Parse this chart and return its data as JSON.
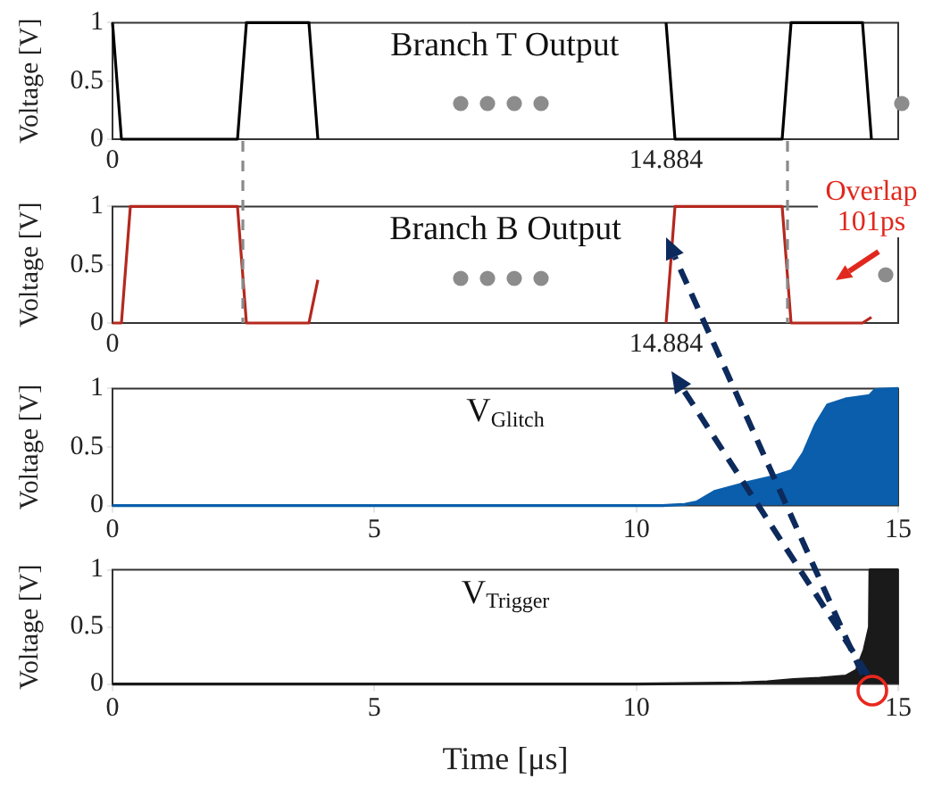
{
  "chart_data": [
    {
      "type": "line",
      "title": "Branch T Output",
      "ylabel": "Voltage [V]",
      "ylim": [
        0,
        1
      ],
      "yticks": [
        0,
        0.5,
        1
      ],
      "categories": [
        "0",
        null,
        null,
        null,
        null,
        null,
        null,
        null,
        null,
        null,
        null,
        null,
        null,
        null,
        null,
        null,
        null,
        null,
        null,
        null,
        null,
        null,
        null,
        null,
        null,
        null,
        null,
        null,
        null,
        null,
        null,
        null,
        null,
        null,
        null,
        null,
        null,
        null,
        null,
        null,
        null,
        null,
        null,
        null,
        null,
        null,
        null,
        null,
        null,
        null,
        null,
        null,
        null,
        null,
        null,
        null,
        null,
        null,
        null,
        null,
        null,
        null,
        "14.884",
        null,
        null,
        null,
        null,
        null,
        null,
        null,
        null,
        null,
        null,
        null,
        null,
        null,
        null,
        null,
        null,
        null,
        null,
        null,
        null,
        null,
        null,
        null,
        null,
        null,
        null
      ],
      "series": [
        {
          "color": "#000000",
          "values": [
            1,
            0,
            0,
            0,
            0,
            0,
            0,
            0,
            0,
            0,
            0,
            0,
            0,
            0,
            0,
            1,
            1,
            1,
            1,
            1,
            1,
            1,
            1,
            0,
            null,
            null,
            null,
            null,
            null,
            null,
            null,
            null,
            null,
            null,
            null,
            null,
            null,
            null,
            null,
            null,
            null,
            null,
            null,
            null,
            null,
            null,
            null,
            null,
            null,
            null,
            null,
            null,
            null,
            null,
            null,
            null,
            null,
            null,
            null,
            null,
            null,
            null,
            1,
            0,
            0,
            0,
            0,
            0,
            0,
            0,
            0,
            0,
            0,
            0,
            0,
            0,
            1,
            1,
            1,
            1,
            1,
            1,
            1,
            1,
            1,
            0,
            null,
            null,
            null
          ]
        }
      ]
    },
    {
      "type": "line",
      "title": "Branch B Output",
      "ylabel": "Voltage [V]",
      "ylim": [
        0,
        1
      ],
      "yticks": [
        0,
        0.5,
        1
      ],
      "annotations": [
        "Overlap 101ps"
      ],
      "categories": [
        "0",
        null,
        null,
        null,
        null,
        null,
        null,
        null,
        null,
        null,
        null,
        null,
        null,
        null,
        null,
        null,
        null,
        null,
        null,
        null,
        null,
        null,
        null,
        null,
        null,
        null,
        null,
        null,
        null,
        null,
        null,
        null,
        null,
        null,
        null,
        null,
        null,
        null,
        null,
        null,
        null,
        null,
        null,
        null,
        null,
        null,
        null,
        null,
        null,
        null,
        null,
        null,
        null,
        null,
        null,
        null,
        null,
        null,
        null,
        null,
        null,
        null,
        "14.884",
        null,
        null,
        null,
        null,
        null,
        null,
        null,
        null,
        null,
        null,
        null,
        null,
        null,
        null,
        null,
        null,
        null,
        null,
        null,
        null,
        null,
        null,
        null,
        null,
        null,
        null
      ],
      "series": [
        {
          "color": "#b5281e",
          "values": [
            0,
            0,
            1,
            1,
            1,
            1,
            1,
            1,
            1,
            1,
            1,
            1,
            1,
            1,
            1,
            0,
            0,
            0,
            0,
            0,
            0,
            0,
            0,
            0.37,
            null,
            null,
            null,
            null,
            null,
            null,
            null,
            null,
            null,
            null,
            null,
            null,
            null,
            null,
            null,
            null,
            null,
            null,
            null,
            null,
            null,
            null,
            null,
            null,
            null,
            null,
            null,
            null,
            null,
            null,
            null,
            null,
            null,
            null,
            null,
            null,
            null,
            null,
            0,
            1,
            1,
            1,
            1,
            1,
            1,
            1,
            1,
            1,
            1,
            1,
            1,
            1,
            0,
            0,
            0,
            0,
            0,
            0,
            0,
            0,
            0,
            0.05,
            null,
            null,
            null
          ]
        }
      ]
    },
    {
      "type": "area",
      "title": "V$_{Glitch}$",
      "ylabel": "Voltage [V]",
      "ylim": [
        0,
        1
      ],
      "yticks": [
        0,
        0.5,
        1
      ],
      "xlim": [
        0,
        15
      ],
      "xticks": [
        0,
        5,
        10,
        15
      ],
      "x": [
        0,
        10.5,
        10.92,
        11.15,
        11.49,
        12.06,
        12.63,
        12.97,
        13.19,
        13.42,
        13.65,
        13.99,
        14.45,
        14.56,
        15
      ],
      "series": [
        {
          "color": "#0a5eab",
          "values": [
            0,
            0,
            0.01,
            0.03,
            0.12,
            0.19,
            0.25,
            0.3,
            0.45,
            0.69,
            0.86,
            0.91,
            0.94,
            0.99,
            1
          ]
        }
      ]
    },
    {
      "type": "area",
      "title": "V$_{Trigger}$",
      "ylabel": "Voltage [V]",
      "xlabel": "Time [μs]",
      "ylim": [
        0,
        1
      ],
      "yticks": [
        0,
        0.5,
        1
      ],
      "xlim": [
        0,
        15
      ],
      "xticks": [
        0,
        5,
        10,
        15
      ],
      "x": [
        0,
        10,
        12,
        12.5,
        13,
        13.5,
        14,
        14.2,
        14.35,
        14.45,
        14.46,
        15
      ],
      "series": [
        {
          "color": "#1a1a1a",
          "values": [
            0,
            0,
            0.01,
            0.02,
            0.04,
            0.05,
            0.07,
            0.12,
            0.3,
            0.5,
            1,
            1
          ]
        }
      ]
    }
  ]
}
